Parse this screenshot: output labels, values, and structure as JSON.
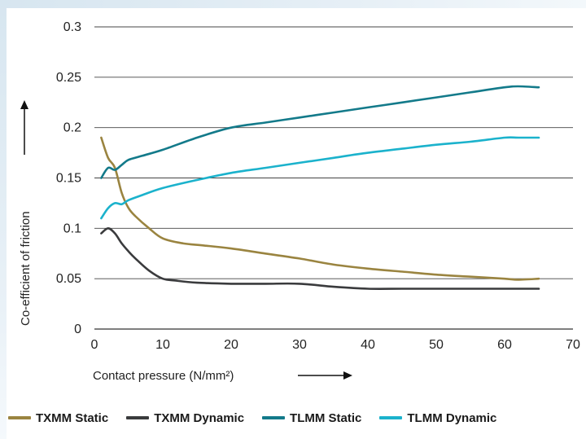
{
  "chart_data": {
    "type": "line",
    "xlabel": "Contact pressure (N/mm²)",
    "ylabel": "Co-efficient of friction",
    "xlim": [
      0,
      70
    ],
    "ylim": [
      0,
      0.3
    ],
    "x_ticks": [
      0,
      10,
      20,
      30,
      40,
      50,
      60,
      70
    ],
    "y_ticks": [
      0,
      0.05,
      0.1,
      0.15,
      0.2,
      0.25,
      0.3
    ],
    "y_tick_labels": [
      "0",
      "0.05",
      "0.1",
      "0.15",
      "0.2",
      "0.25",
      "0.3"
    ],
    "grid": "horizontal",
    "legend_position": "bottom",
    "series": [
      {
        "name": "TXMM Static",
        "color": "#9a8440",
        "points": [
          [
            1,
            0.19
          ],
          [
            2,
            0.17
          ],
          [
            3,
            0.16
          ],
          [
            4,
            0.135
          ],
          [
            5,
            0.12
          ],
          [
            6,
            0.112
          ],
          [
            8,
            0.1
          ],
          [
            10,
            0.09
          ],
          [
            13,
            0.085
          ],
          [
            16,
            0.083
          ],
          [
            20,
            0.08
          ],
          [
            25,
            0.075
          ],
          [
            30,
            0.07
          ],
          [
            35,
            0.064
          ],
          [
            40,
            0.06
          ],
          [
            45,
            0.057
          ],
          [
            50,
            0.054
          ],
          [
            55,
            0.052
          ],
          [
            60,
            0.05
          ],
          [
            62,
            0.049
          ],
          [
            65,
            0.05
          ]
        ]
      },
      {
        "name": "TXMM Dynamic",
        "color": "#3a3b3d",
        "points": [
          [
            1,
            0.095
          ],
          [
            2,
            0.1
          ],
          [
            3,
            0.095
          ],
          [
            4,
            0.085
          ],
          [
            5,
            0.077
          ],
          [
            6,
            0.07
          ],
          [
            8,
            0.058
          ],
          [
            10,
            0.05
          ],
          [
            12,
            0.048
          ],
          [
            15,
            0.046
          ],
          [
            20,
            0.045
          ],
          [
            25,
            0.045
          ],
          [
            30,
            0.045
          ],
          [
            35,
            0.042
          ],
          [
            40,
            0.04
          ],
          [
            45,
            0.04
          ],
          [
            50,
            0.04
          ],
          [
            55,
            0.04
          ],
          [
            60,
            0.04
          ],
          [
            65,
            0.04
          ]
        ]
      },
      {
        "name": "TLMM Static",
        "color": "#137a8a",
        "points": [
          [
            1,
            0.15
          ],
          [
            2,
            0.16
          ],
          [
            3,
            0.158
          ],
          [
            4,
            0.163
          ],
          [
            5,
            0.168
          ],
          [
            7,
            0.172
          ],
          [
            10,
            0.178
          ],
          [
            15,
            0.19
          ],
          [
            20,
            0.2
          ],
          [
            25,
            0.205
          ],
          [
            30,
            0.21
          ],
          [
            35,
            0.215
          ],
          [
            40,
            0.22
          ],
          [
            45,
            0.225
          ],
          [
            50,
            0.23
          ],
          [
            55,
            0.235
          ],
          [
            60,
            0.24
          ],
          [
            62,
            0.241
          ],
          [
            65,
            0.24
          ]
        ]
      },
      {
        "name": "TLMM Dynamic",
        "color": "#1bb2cc",
        "points": [
          [
            1,
            0.11
          ],
          [
            2,
            0.12
          ],
          [
            3,
            0.125
          ],
          [
            4,
            0.124
          ],
          [
            5,
            0.128
          ],
          [
            7,
            0.133
          ],
          [
            10,
            0.14
          ],
          [
            15,
            0.148
          ],
          [
            20,
            0.155
          ],
          [
            25,
            0.16
          ],
          [
            30,
            0.165
          ],
          [
            35,
            0.17
          ],
          [
            40,
            0.175
          ],
          [
            45,
            0.179
          ],
          [
            50,
            0.183
          ],
          [
            55,
            0.186
          ],
          [
            60,
            0.19
          ],
          [
            62,
            0.19
          ],
          [
            65,
            0.19
          ]
        ]
      }
    ]
  }
}
